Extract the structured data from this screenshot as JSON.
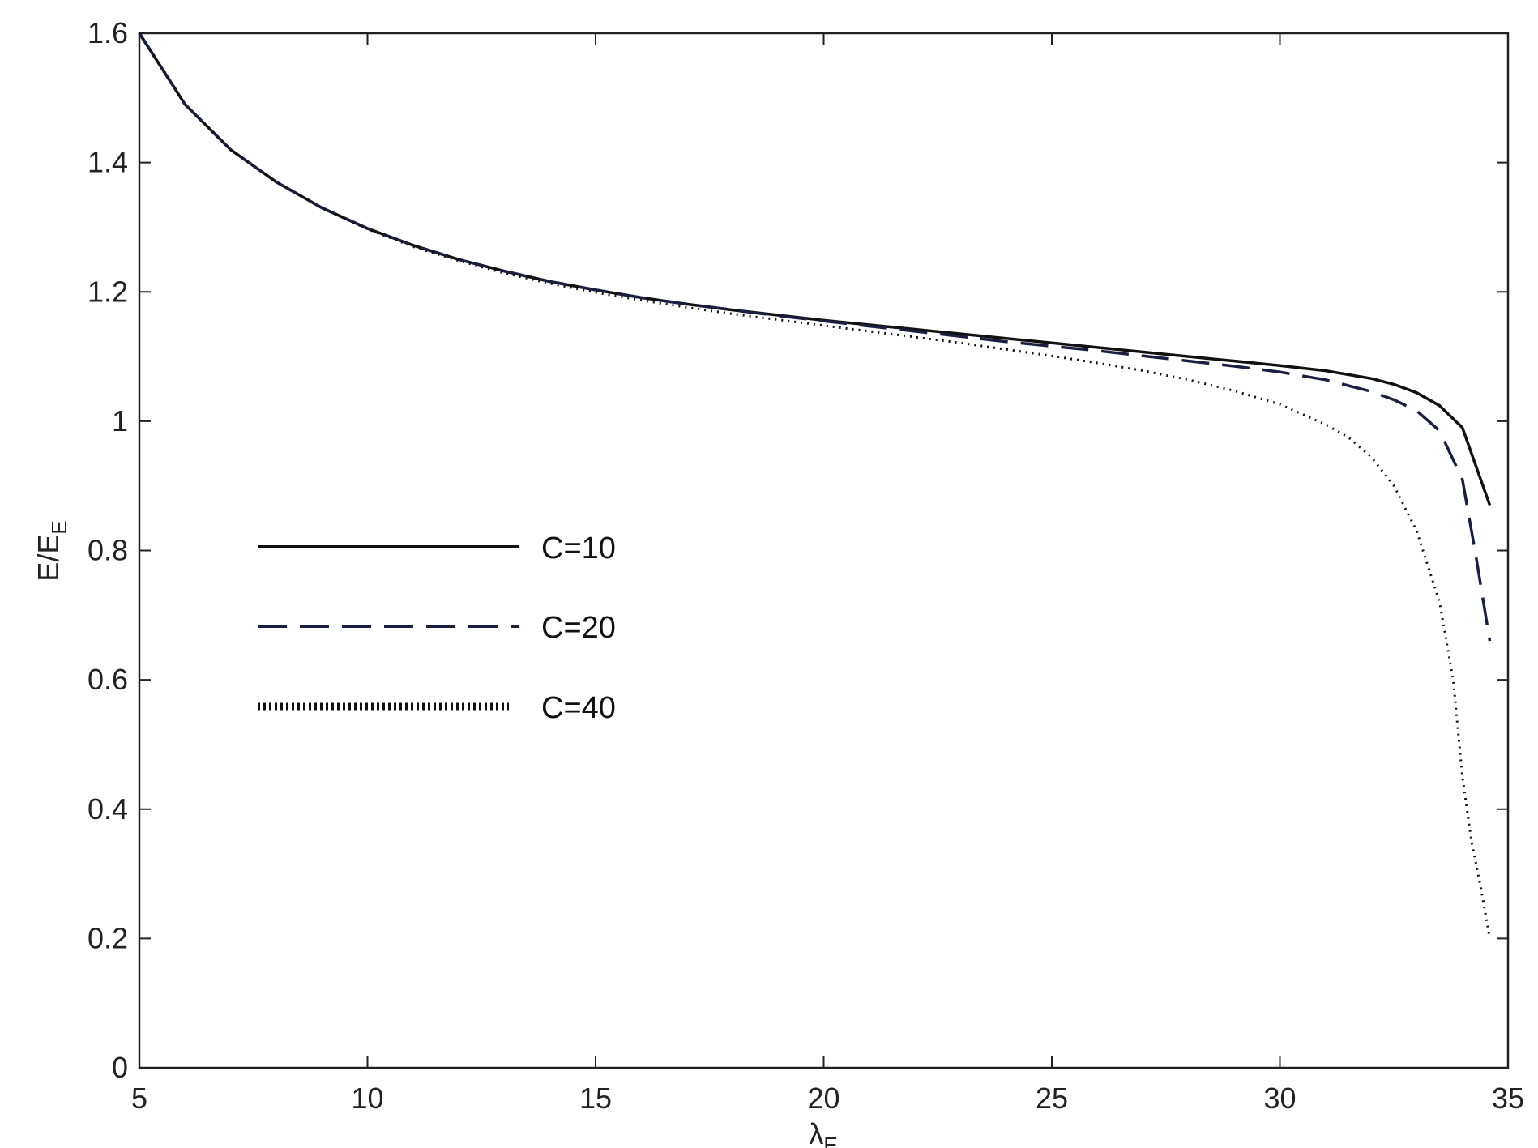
{
  "chart_data": {
    "type": "line",
    "title": "",
    "xlabel": "λE",
    "ylabel": "E/EE",
    "xlim": [
      5,
      35
    ],
    "ylim": [
      0,
      1.6
    ],
    "xticks": [
      "5",
      "10",
      "15",
      "20",
      "25",
      "30",
      "35"
    ],
    "yticks": [
      "0",
      "0.2",
      "0.4",
      "0.6",
      "0.8",
      "1",
      "1.2",
      "1.4",
      "1.6"
    ],
    "grid": false,
    "legend_position": "center-left",
    "x": [
      5,
      6,
      7,
      8,
      9,
      10,
      11,
      12,
      13,
      14,
      15,
      16,
      17,
      18,
      19,
      20,
      21,
      22,
      23,
      24,
      25,
      26,
      27,
      28,
      29,
      30,
      31,
      31.5,
      32,
      32.5,
      33,
      33.5,
      33.8,
      34,
      34.2,
      34.4,
      34.5,
      34.6
    ],
    "series": [
      {
        "name": "C=10",
        "style": "solid",
        "color": "#111111",
        "points": [
          [
            5,
            1.6
          ],
          [
            6,
            1.49
          ],
          [
            7,
            1.42
          ],
          [
            8,
            1.37
          ],
          [
            9,
            1.33
          ],
          [
            10,
            1.298
          ],
          [
            11,
            1.272
          ],
          [
            12,
            1.25
          ],
          [
            13,
            1.232
          ],
          [
            14,
            1.216
          ],
          [
            15,
            1.203
          ],
          [
            16,
            1.191
          ],
          [
            17,
            1.181
          ],
          [
            18,
            1.172
          ],
          [
            19,
            1.164
          ],
          [
            20,
            1.156
          ],
          [
            21,
            1.149
          ],
          [
            22,
            1.142
          ],
          [
            23,
            1.135
          ],
          [
            24,
            1.128
          ],
          [
            25,
            1.121
          ],
          [
            26,
            1.114
          ],
          [
            27,
            1.107
          ],
          [
            28,
            1.1
          ],
          [
            29,
            1.093
          ],
          [
            30,
            1.086
          ],
          [
            31,
            1.078
          ],
          [
            32,
            1.066
          ],
          [
            32.5,
            1.057
          ],
          [
            33,
            1.044
          ],
          [
            33.5,
            1.024
          ],
          [
            34,
            0.99
          ],
          [
            34.6,
            0.87
          ]
        ]
      },
      {
        "name": "C=20",
        "style": "dashed",
        "color": "#1a1f3f",
        "points": [
          [
            5,
            1.6
          ],
          [
            6,
            1.49
          ],
          [
            7,
            1.42
          ],
          [
            8,
            1.37
          ],
          [
            9,
            1.33
          ],
          [
            10,
            1.298
          ],
          [
            11,
            1.272
          ],
          [
            12,
            1.25
          ],
          [
            13,
            1.232
          ],
          [
            14,
            1.216
          ],
          [
            15,
            1.203
          ],
          [
            16,
            1.191
          ],
          [
            17,
            1.181
          ],
          [
            18,
            1.172
          ],
          [
            19,
            1.163
          ],
          [
            20,
            1.155
          ],
          [
            21,
            1.147
          ],
          [
            22,
            1.139
          ],
          [
            23,
            1.131
          ],
          [
            24,
            1.123
          ],
          [
            25,
            1.116
          ],
          [
            26,
            1.109
          ],
          [
            27,
            1.101
          ],
          [
            28,
            1.093
          ],
          [
            29,
            1.085
          ],
          [
            30,
            1.076
          ],
          [
            31,
            1.064
          ],
          [
            32,
            1.046
          ],
          [
            32.5,
            1.033
          ],
          [
            33,
            1.016
          ],
          [
            33.5,
            0.985
          ],
          [
            34,
            0.91
          ],
          [
            34.3,
            0.79
          ],
          [
            34.6,
            0.66
          ]
        ]
      },
      {
        "name": "C=40",
        "style": "dotted",
        "color": "#111111",
        "points": [
          [
            5,
            1.6
          ],
          [
            6,
            1.49
          ],
          [
            7,
            1.42
          ],
          [
            8,
            1.37
          ],
          [
            9,
            1.33
          ],
          [
            10,
            1.297
          ],
          [
            11,
            1.27
          ],
          [
            12,
            1.248
          ],
          [
            13,
            1.229
          ],
          [
            14,
            1.213
          ],
          [
            15,
            1.199
          ],
          [
            16,
            1.187
          ],
          [
            17,
            1.176
          ],
          [
            18,
            1.166
          ],
          [
            19,
            1.157
          ],
          [
            20,
            1.148
          ],
          [
            21,
            1.139
          ],
          [
            22,
            1.13
          ],
          [
            23,
            1.121
          ],
          [
            24,
            1.111
          ],
          [
            25,
            1.101
          ],
          [
            26,
            1.09
          ],
          [
            27,
            1.078
          ],
          [
            28,
            1.064
          ],
          [
            29,
            1.047
          ],
          [
            30,
            1.026
          ],
          [
            31,
            0.995
          ],
          [
            31.5,
            0.975
          ],
          [
            32,
            0.945
          ],
          [
            32.5,
            0.9
          ],
          [
            33,
            0.83
          ],
          [
            33.5,
            0.72
          ],
          [
            33.8,
            0.6
          ],
          [
            34,
            0.45
          ],
          [
            34.2,
            0.35
          ],
          [
            34.4,
            0.28
          ],
          [
            34.6,
            0.2
          ]
        ]
      }
    ]
  }
}
